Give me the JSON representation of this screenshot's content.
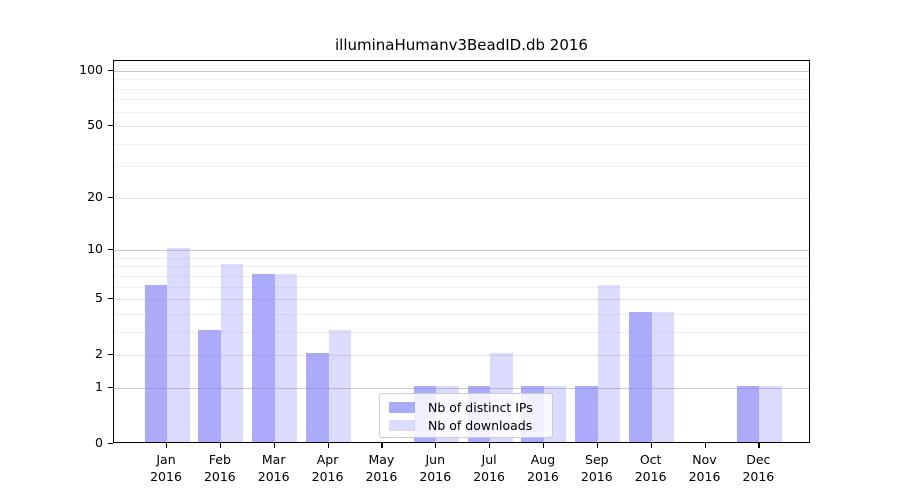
{
  "chart_data": {
    "type": "bar",
    "title": "illuminaHumanv3BeadID.db 2016",
    "categories": [
      "Jan",
      "Feb",
      "Mar",
      "Apr",
      "May",
      "Jun",
      "Jul",
      "Aug",
      "Sep",
      "Oct",
      "Nov",
      "Dec"
    ],
    "year": "2016",
    "series": [
      {
        "name": "Nb of distinct IPs",
        "color": "rgba(136,136,248,0.71)",
        "values": [
          6,
          3,
          7,
          2,
          0,
          1,
          1,
          1,
          1,
          4,
          0,
          1
        ]
      },
      {
        "name": "Nb of downloads",
        "color": "rgba(136,136,248,0.30)",
        "values": [
          10,
          8,
          7,
          3,
          0,
          1,
          2,
          1,
          6,
          4,
          0,
          1
        ]
      }
    ],
    "y_axis": {
      "scale": "log1p",
      "tick_values": [
        0,
        1,
        2,
        5,
        10,
        20,
        50,
        100
      ],
      "tick_labels": [
        "0",
        "1",
        "2",
        "5",
        "10",
        "20",
        "50",
        "100"
      ],
      "decade_gridlines": [
        1,
        10,
        100
      ],
      "major_gridlines": [
        2,
        5,
        20,
        50
      ],
      "minor_gridlines": [
        3,
        4,
        6,
        7,
        8,
        9,
        30,
        40,
        60,
        70,
        80,
        90
      ],
      "ylim": [
        0,
        113
      ]
    },
    "xlabel": "",
    "ylabel": "",
    "grid": true,
    "legend": {
      "position": "lower-center",
      "entries": [
        "Nb of distinct IPs",
        "Nb of downloads"
      ]
    },
    "colors": {
      "bar_base": "#8888f8",
      "axis": "#000000",
      "gridline_decade": "#c9c9c9",
      "gridline_major": "#e2e2e2",
      "gridline_minor": "#efefef",
      "background": "#ffffff"
    }
  }
}
